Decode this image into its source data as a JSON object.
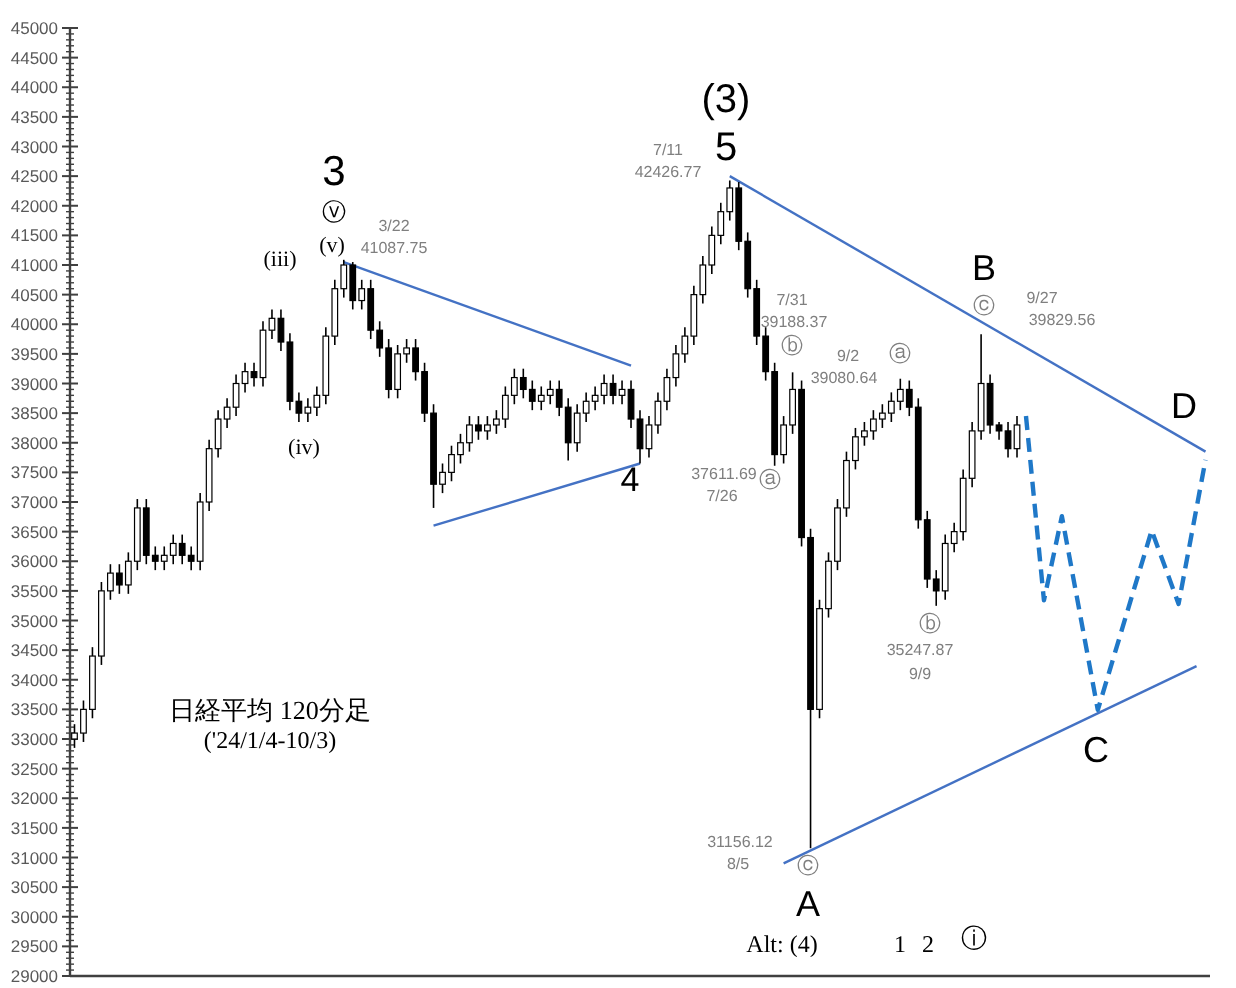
{
  "chart_data": {
    "type": "candlestick",
    "title": "日経平均 120分足",
    "subtitle": "('24/1/4-10/3)",
    "categories": [
      null,
      null,
      null,
      null,
      null,
      null,
      null,
      null,
      null,
      null,
      null,
      null,
      null,
      null,
      null,
      null,
      null,
      null,
      null,
      null,
      null,
      null,
      null,
      null,
      null,
      null,
      null,
      null,
      null,
      null,
      null,
      null,
      null,
      null,
      null,
      null,
      null,
      null,
      null,
      null,
      null,
      null,
      null,
      null,
      null,
      null,
      null,
      null,
      null,
      null,
      null,
      null,
      null,
      null,
      null,
      null,
      null,
      null,
      null,
      null,
      null,
      null,
      null,
      null,
      null,
      null,
      null,
      null,
      null,
      null,
      null,
      null,
      null,
      null,
      null,
      null,
      null,
      null,
      null,
      null,
      null,
      null,
      null,
      null,
      null,
      null,
      null,
      null,
      null,
      null,
      null,
      null,
      null,
      null,
      null,
      null,
      null,
      null,
      null,
      null,
      null,
      null,
      null,
      null,
      null,
      null,
      null,
      null,
      null,
      null,
      null,
      null,
      null,
      null,
      null,
      null,
      null,
      null,
      null,
      null,
      null,
      null,
      null,
      null,
      null,
      null,
      null
    ],
    "color": "#000000",
    "ohlc": [
      [
        33000,
        33250,
        32850,
        33100
      ],
      [
        33100,
        33650,
        32950,
        33500
      ],
      [
        33500,
        34550,
        33350,
        34400
      ],
      [
        34400,
        35650,
        34250,
        35500
      ],
      [
        35500,
        35950,
        35350,
        35800
      ],
      [
        35800,
        35950,
        35450,
        35600
      ],
      [
        35600,
        36150,
        35450,
        36000
      ],
      [
        36000,
        37050,
        35850,
        36900
      ],
      [
        36900,
        37050,
        35950,
        36100
      ],
      [
        36100,
        36250,
        35850,
        36000
      ],
      [
        36000,
        36250,
        35850,
        36100
      ],
      [
        36100,
        36450,
        35950,
        36300
      ],
      [
        36300,
        36450,
        35950,
        36100
      ],
      [
        36100,
        36250,
        35850,
        36000
      ],
      [
        36000,
        37150,
        35850,
        37000
      ],
      [
        37000,
        38050,
        36850,
        37900
      ],
      [
        37900,
        38550,
        37750,
        38400
      ],
      [
        38400,
        38750,
        38250,
        38600
      ],
      [
        38600,
        39150,
        38450,
        39000
      ],
      [
        39000,
        39350,
        38850,
        39200
      ],
      [
        39200,
        39350,
        38950,
        39100
      ],
      [
        39100,
        40050,
        38950,
        39900
      ],
      [
        39900,
        40250,
        39750,
        40100
      ],
      [
        40100,
        40250,
        39550,
        39700
      ],
      [
        39700,
        39850,
        38550,
        38700
      ],
      [
        38700,
        38850,
        38350,
        38500
      ],
      [
        38500,
        38750,
        38350,
        38600
      ],
      [
        38600,
        38950,
        38450,
        38800
      ],
      [
        38800,
        39950,
        38650,
        39800
      ],
      [
        39800,
        40750,
        39650,
        40600
      ],
      [
        40600,
        41087.75,
        40450,
        41000
      ],
      [
        41000,
        41050,
        40250,
        40400
      ],
      [
        40400,
        40750,
        40250,
        40600
      ],
      [
        40600,
        40750,
        39750,
        39900
      ],
      [
        39900,
        40050,
        39450,
        39600
      ],
      [
        39600,
        39750,
        38750,
        38900
      ],
      [
        38900,
        39650,
        38750,
        39500
      ],
      [
        39500,
        39750,
        39350,
        39600
      ],
      [
        39600,
        39750,
        39050,
        39200
      ],
      [
        39200,
        39350,
        38350,
        38500
      ],
      [
        38500,
        38650,
        36900,
        37300
      ],
      [
        37300,
        37650,
        37150,
        37500
      ],
      [
        37500,
        37950,
        37350,
        37800
      ],
      [
        37800,
        38150,
        37650,
        38000
      ],
      [
        38000,
        38450,
        37850,
        38300
      ],
      [
        38300,
        38450,
        38050,
        38200
      ],
      [
        38200,
        38450,
        38050,
        38300
      ],
      [
        38300,
        38550,
        38150,
        38400
      ],
      [
        38400,
        38950,
        38250,
        38800
      ],
      [
        38800,
        39250,
        38650,
        39100
      ],
      [
        39100,
        39250,
        38750,
        38900
      ],
      [
        38900,
        39050,
        38550,
        38700
      ],
      [
        38700,
        38950,
        38550,
        38800
      ],
      [
        38800,
        39050,
        38650,
        38900
      ],
      [
        38900,
        39050,
        38450,
        38600
      ],
      [
        38600,
        38750,
        37700,
        38000
      ],
      [
        38000,
        38650,
        37850,
        38500
      ],
      [
        38500,
        38850,
        38350,
        38700
      ],
      [
        38700,
        38950,
        38550,
        38800
      ],
      [
        38800,
        39150,
        38650,
        39000
      ],
      [
        39000,
        39150,
        38650,
        38800
      ],
      [
        38800,
        39050,
        38650,
        38900
      ],
      [
        38900,
        39050,
        38250,
        38400
      ],
      [
        38400,
        38550,
        37650,
        37900
      ],
      [
        37900,
        38450,
        37750,
        38300
      ],
      [
        38300,
        38850,
        38150,
        38700
      ],
      [
        38700,
        39250,
        38550,
        39100
      ],
      [
        39100,
        39650,
        38950,
        39500
      ],
      [
        39500,
        39950,
        39350,
        39800
      ],
      [
        39800,
        40650,
        39650,
        40500
      ],
      [
        40500,
        41150,
        40350,
        41000
      ],
      [
        41000,
        41650,
        40850,
        41500
      ],
      [
        41500,
        42050,
        41350,
        41900
      ],
      [
        41900,
        42426.77,
        41750,
        42300
      ],
      [
        42300,
        42400,
        41250,
        41400
      ],
      [
        41400,
        41550,
        40450,
        40600
      ],
      [
        40600,
        40750,
        39650,
        39800
      ],
      [
        39800,
        39950,
        39050,
        39200
      ],
      [
        39200,
        39350,
        37611.69,
        37800
      ],
      [
        37800,
        38450,
        37650,
        38300
      ],
      [
        38300,
        39188.37,
        38150,
        38900
      ],
      [
        38900,
        39050,
        36250,
        36400
      ],
      [
        36400,
        36550,
        31156.12,
        33500
      ],
      [
        33500,
        35350,
        33350,
        35200
      ],
      [
        35200,
        36150,
        35050,
        36000
      ],
      [
        36000,
        37050,
        35850,
        36900
      ],
      [
        36900,
        37850,
        36750,
        37700
      ],
      [
        37700,
        38250,
        37550,
        38100
      ],
      [
        38100,
        38350,
        37950,
        38200
      ],
      [
        38200,
        38550,
        38050,
        38400
      ],
      [
        38400,
        38650,
        38250,
        38500
      ],
      [
        38500,
        38850,
        38350,
        38700
      ],
      [
        38700,
        39080.64,
        38550,
        38900
      ],
      [
        38900,
        39050,
        38450,
        38600
      ],
      [
        38600,
        38750,
        36550,
        36700
      ],
      [
        36700,
        36850,
        35550,
        35700
      ],
      [
        35700,
        35850,
        35247.87,
        35500
      ],
      [
        35500,
        36450,
        35350,
        36300
      ],
      [
        36300,
        36650,
        36150,
        36500
      ],
      [
        36500,
        37550,
        36350,
        37400
      ],
      [
        37400,
        38350,
        37250,
        38200
      ],
      [
        38200,
        39829.56,
        38050,
        39000
      ],
      [
        39000,
        39150,
        38150,
        38300
      ],
      [
        38300,
        38350,
        38050,
        38200
      ],
      [
        38200,
        38350,
        37750,
        37900
      ],
      [
        37900,
        38450,
        37750,
        38300
      ],
      null,
      null,
      null,
      null,
      null,
      null,
      null,
      null,
      null,
      null,
      null,
      null,
      null,
      null,
      null,
      null,
      null,
      null,
      null,
      null,
      null
    ],
    "series": [
      {
        "type": "line",
        "color": "#4472c4",
        "values": [
          null,
          null,
          null,
          null,
          null,
          null,
          null,
          null,
          null,
          null,
          null,
          null,
          null,
          null,
          null,
          null,
          null,
          null,
          null,
          null,
          null,
          null,
          null,
          null,
          null,
          null,
          null,
          null,
          null,
          null,
          41050,
          null,
          null,
          null,
          null,
          null,
          null,
          null,
          null,
          null,
          null,
          null,
          null,
          null,
          null,
          null,
          null,
          null,
          null,
          null,
          null,
          null,
          null,
          null,
          null,
          null,
          null,
          null,
          null,
          null,
          null,
          null,
          39300,
          null,
          null,
          null,
          null,
          null,
          null,
          null,
          null,
          null,
          null,
          null,
          null,
          null,
          null,
          null,
          null,
          null,
          null,
          null,
          null,
          null,
          null,
          null,
          null,
          null,
          null,
          null,
          null,
          null,
          null,
          null,
          null,
          null,
          null,
          null,
          null,
          null,
          null,
          null,
          null,
          null,
          null,
          null,
          null,
          null,
          null,
          null,
          null,
          null,
          null,
          null,
          null,
          null,
          null,
          null,
          null,
          null,
          null,
          null,
          null,
          null,
          null,
          null,
          null
        ]
      },
      {
        "type": "line",
        "color": "#4472c4",
        "values": [
          null,
          null,
          null,
          null,
          null,
          null,
          null,
          null,
          null,
          null,
          null,
          null,
          null,
          null,
          null,
          null,
          null,
          null,
          null,
          null,
          null,
          null,
          null,
          null,
          null,
          null,
          null,
          null,
          null,
          null,
          null,
          null,
          null,
          null,
          null,
          null,
          null,
          null,
          null,
          null,
          36600,
          null,
          null,
          null,
          null,
          null,
          null,
          null,
          null,
          null,
          null,
          null,
          null,
          null,
          null,
          null,
          null,
          null,
          null,
          null,
          null,
          null,
          null,
          37650,
          null,
          null,
          null,
          null,
          null,
          null,
          null,
          null,
          null,
          null,
          null,
          null,
          null,
          null,
          null,
          null,
          null,
          null,
          null,
          null,
          null,
          null,
          null,
          null,
          null,
          null,
          null,
          null,
          null,
          null,
          null,
          null,
          null,
          null,
          null,
          null,
          null,
          null,
          null,
          null,
          null,
          null,
          null,
          null,
          null,
          null,
          null,
          null,
          null,
          null,
          null,
          null,
          null,
          null,
          null,
          null,
          null,
          null,
          null,
          null,
          null,
          null,
          null
        ]
      },
      {
        "type": "line",
        "color": "#4472c4",
        "values": [
          null,
          null,
          null,
          null,
          null,
          null,
          null,
          null,
          null,
          null,
          null,
          null,
          null,
          null,
          null,
          null,
          null,
          null,
          null,
          null,
          null,
          null,
          null,
          null,
          null,
          null,
          null,
          null,
          null,
          null,
          null,
          null,
          null,
          null,
          null,
          null,
          null,
          null,
          null,
          null,
          null,
          null,
          null,
          null,
          null,
          null,
          null,
          null,
          null,
          null,
          null,
          null,
          null,
          null,
          null,
          null,
          null,
          null,
          null,
          null,
          null,
          null,
          null,
          null,
          null,
          null,
          null,
          null,
          null,
          null,
          null,
          null,
          null,
          42500,
          null,
          null,
          null,
          null,
          null,
          null,
          null,
          null,
          null,
          null,
          null,
          null,
          null,
          null,
          null,
          null,
          null,
          null,
          null,
          null,
          null,
          null,
          null,
          null,
          null,
          null,
          null,
          null,
          null,
          null,
          null,
          null,
          null,
          null,
          null,
          null,
          null,
          null,
          null,
          null,
          null,
          null,
          null,
          null,
          null,
          null,
          null,
          null,
          null,
          null,
          null,
          null,
          37850
        ]
      },
      {
        "type": "line",
        "color": "#4472c4",
        "values": [
          null,
          null,
          null,
          null,
          null,
          null,
          null,
          null,
          null,
          null,
          null,
          null,
          null,
          null,
          null,
          null,
          null,
          null,
          null,
          null,
          null,
          null,
          null,
          null,
          null,
          null,
          null,
          null,
          null,
          null,
          null,
          null,
          null,
          null,
          null,
          null,
          null,
          null,
          null,
          null,
          null,
          null,
          null,
          null,
          null,
          null,
          null,
          null,
          null,
          null,
          null,
          null,
          null,
          null,
          null,
          null,
          null,
          null,
          null,
          null,
          null,
          null,
          null,
          null,
          null,
          null,
          null,
          null,
          null,
          null,
          null,
          null,
          null,
          null,
          null,
          null,
          null,
          null,
          null,
          30900,
          null,
          null,
          null,
          null,
          null,
          null,
          null,
          null,
          null,
          null,
          null,
          null,
          null,
          null,
          null,
          null,
          null,
          null,
          null,
          null,
          null,
          null,
          null,
          null,
          null,
          null,
          null,
          null,
          null,
          null,
          null,
          null,
          null,
          null,
          null,
          null,
          null,
          null,
          null,
          null,
          null,
          null,
          null,
          null,
          null,
          34230,
          null
        ]
      },
      {
        "type": "line",
        "color": "#1f78c8",
        "line_style": "dashed",
        "values": [
          null,
          null,
          null,
          null,
          null,
          null,
          null,
          null,
          null,
          null,
          null,
          null,
          null,
          null,
          null,
          null,
          null,
          null,
          null,
          null,
          null,
          null,
          null,
          null,
          null,
          null,
          null,
          null,
          null,
          null,
          null,
          null,
          null,
          null,
          null,
          null,
          null,
          null,
          null,
          null,
          null,
          null,
          null,
          null,
          null,
          null,
          null,
          null,
          null,
          null,
          null,
          null,
          null,
          null,
          null,
          null,
          null,
          null,
          null,
          null,
          null,
          null,
          null,
          null,
          null,
          null,
          null,
          null,
          null,
          null,
          null,
          null,
          null,
          null,
          null,
          null,
          null,
          null,
          null,
          null,
          null,
          null,
          null,
          null,
          null,
          null,
          null,
          null,
          null,
          null,
          null,
          null,
          null,
          null,
          null,
          null,
          null,
          null,
          null,
          null,
          null,
          null,
          null,
          null,
          null,
          null,
          38450,
          null,
          35340,
          null,
          36760,
          null,
          null,
          null,
          33490,
          null,
          null,
          null,
          null,
          null,
          36520,
          null,
          null,
          35280,
          null,
          null,
          37710
        ]
      }
    ],
    "ylim": [
      29000,
      45000
    ],
    "yticks": [
      29000,
      29500,
      30000,
      30500,
      31000,
      31500,
      32000,
      32500,
      33000,
      33500,
      34000,
      34500,
      35000,
      35500,
      36000,
      36500,
      37000,
      37500,
      38000,
      38500,
      39000,
      39500,
      40000,
      40500,
      41000,
      41500,
      42000,
      42500,
      43000,
      43500,
      44000,
      44500,
      45000
    ],
    "tick_labels": "y",
    "annotations": [
      "3",
      "ⓥ",
      "(v)",
      "(iii)",
      "(iv)",
      "3/22",
      "41087.75",
      "4",
      "(3)",
      "5",
      "7/11",
      "42426.77",
      "7/31",
      "39188.37",
      "ⓑ",
      "37611.69",
      "7/26",
      "ⓐ",
      "9/2",
      "39080.64",
      "ⓐ",
      "B",
      "ⓒ",
      "9/27",
      "39829.56",
      "ⓑ",
      "35247.87",
      "9/9",
      "D",
      "C",
      "31156.12",
      "8/5",
      "ⓒ",
      "A",
      "Alt: (4)",
      "1",
      "2",
      "ⓘ"
    ]
  }
}
